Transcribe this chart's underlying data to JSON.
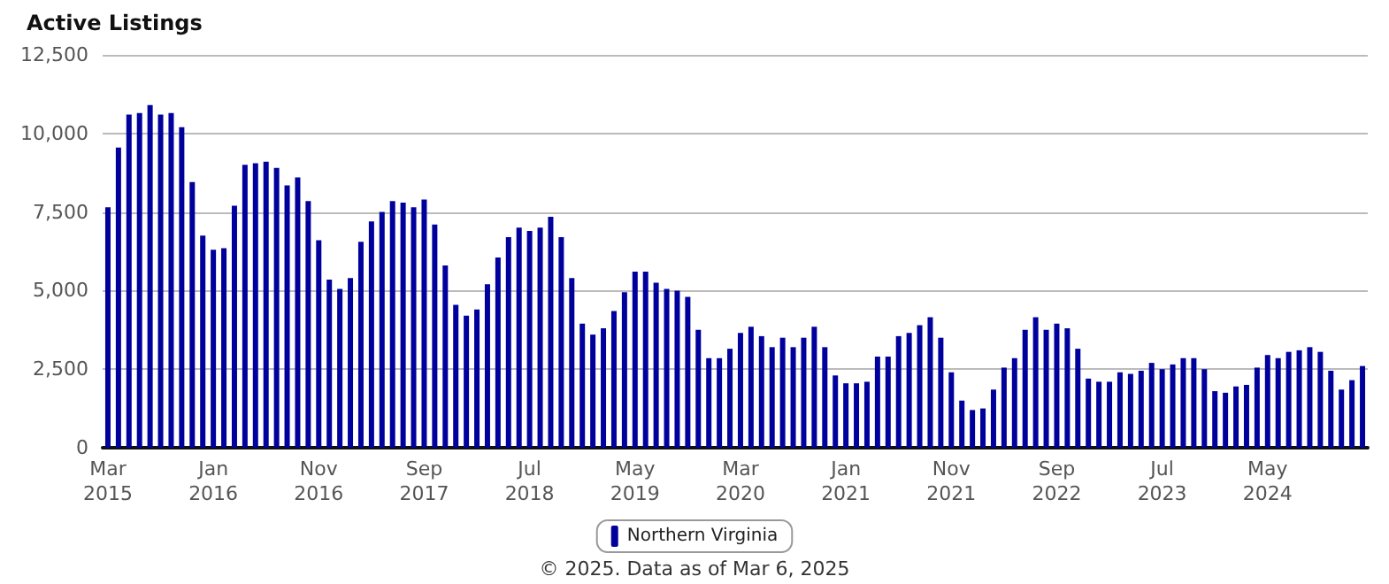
{
  "chart_data": {
    "type": "bar",
    "title": "Active Listings",
    "categories": [
      "Mar\n2015",
      null,
      null,
      null,
      null,
      null,
      null,
      null,
      null,
      null,
      "Jan\n2016",
      null,
      null,
      null,
      null,
      null,
      null,
      null,
      null,
      null,
      "Nov\n2016",
      null,
      null,
      null,
      null,
      null,
      null,
      null,
      null,
      null,
      "Sep\n2017",
      null,
      null,
      null,
      null,
      null,
      null,
      null,
      null,
      null,
      "Jul\n2018",
      null,
      null,
      null,
      null,
      null,
      null,
      null,
      null,
      null,
      "May\n2019",
      null,
      null,
      null,
      null,
      null,
      null,
      null,
      null,
      null,
      "Mar\n2020",
      null,
      null,
      null,
      null,
      null,
      null,
      null,
      null,
      null,
      "Jan\n2021",
      null,
      null,
      null,
      null,
      null,
      null,
      null,
      null,
      null,
      "Nov\n2021",
      null,
      null,
      null,
      null,
      null,
      null,
      null,
      null,
      null,
      "Sep\n2022",
      null,
      null,
      null,
      null,
      null,
      null,
      null,
      null,
      null,
      "Jul\n2023",
      null,
      null,
      null,
      null,
      null,
      null,
      null,
      null,
      null,
      "May\n2024",
      null,
      null,
      null,
      null,
      null,
      null,
      null,
      null,
      null
    ],
    "series": [
      {
        "name": "Northern Virginia",
        "color": "#00009c",
        "values": [
          7650,
          9550,
          10600,
          10650,
          10900,
          10600,
          10650,
          10200,
          8450,
          6750,
          6300,
          6350,
          7700,
          9000,
          9050,
          9100,
          8900,
          8350,
          8600,
          7850,
          6600,
          5350,
          5050,
          5400,
          6550,
          7200,
          7500,
          7850,
          7800,
          7650,
          7900,
          7100,
          5800,
          4550,
          4200,
          4400,
          5200,
          6050,
          6700,
          7000,
          6900,
          7000,
          7350,
          6700,
          5400,
          3950,
          3600,
          3800,
          4350,
          4950,
          5600,
          5600,
          5250,
          5050,
          5000,
          4800,
          3750,
          2850,
          2850,
          3150,
          3650,
          3850,
          3550,
          3200,
          3500,
          3200,
          3500,
          3850,
          3200,
          2300,
          2050,
          2050,
          2100,
          2900,
          2900,
          3550,
          3650,
          3900,
          4150,
          3500,
          2400,
          1500,
          1200,
          1250,
          1850,
          2550,
          2850,
          3750,
          4150,
          3750,
          3950,
          3800,
          3150,
          2200,
          2100,
          2100,
          2400,
          2350,
          2450,
          2700,
          2500,
          2650,
          2850,
          2850,
          2500,
          1800,
          1750,
          1950,
          2000,
          2550,
          2950,
          2850,
          3050,
          3100,
          3200,
          3050,
          2450,
          1850,
          2150,
          2600
        ]
      }
    ],
    "ylim": [
      0,
      12500
    ],
    "yticks": [
      0,
      {
        "value": 2500,
        "label": "2,500"
      },
      {
        "value": 5000,
        "label": "5,000"
      },
      {
        "value": 7500,
        "label": "7,500"
      },
      {
        "value": 10000,
        "label": "10,000"
      },
      {
        "value": 12500,
        "label": "12,500"
      }
    ],
    "grid": "y",
    "legend": "bottom",
    "annotations": [
      "© 2025. Data as of Mar 6, 2025"
    ]
  }
}
